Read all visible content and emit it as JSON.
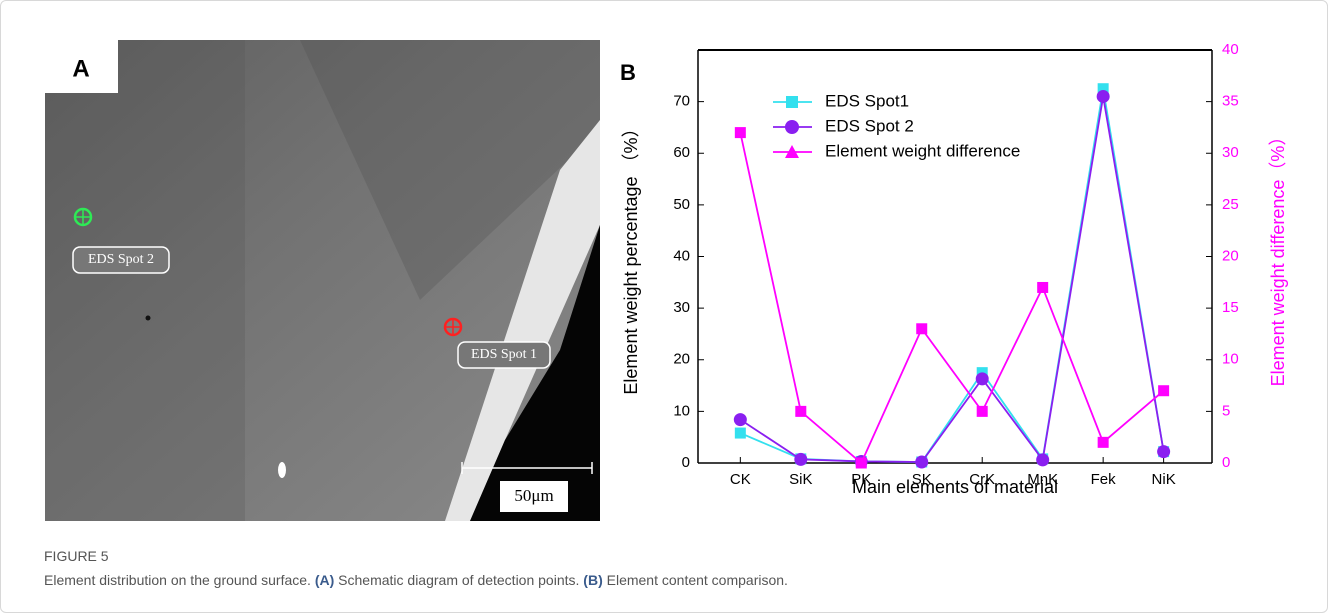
{
  "figure": {
    "label": "FIGURE 5",
    "caption": "Element distribution on the ground surface.",
    "parts": [
      {
        "tag": "(A)",
        "text": "Schematic diagram of detection points."
      },
      {
        "tag": "(B)",
        "text": "Element content comparison."
      }
    ]
  },
  "panel_a": {
    "label": "A",
    "spots": [
      "EDS Spot 2",
      "EDS Spot 1"
    ],
    "scale_bar": "50μm"
  },
  "chart_data": {
    "type": "line",
    "title": "B",
    "x_label": "Main elements of material",
    "y_label": "Element weight percentage （%）",
    "y2_label": "Element weight difference（%）",
    "categories": [
      "CK",
      "SiK",
      "PK",
      "SK",
      "CrK",
      "MnK",
      "Fek",
      "NiK"
    ],
    "series": [
      {
        "name": "EDS Spot1",
        "color": "#33e0ee",
        "marker": "square",
        "values": [
          5.8,
          0.8,
          0.3,
          0.2,
          17.5,
          0.8,
          72.5,
          2.2
        ]
      },
      {
        "name": "EDS Spot 2",
        "color": "#8a1ff0",
        "marker": "circle",
        "values": [
          8.4,
          0.7,
          0.3,
          0.2,
          16.3,
          0.6,
          71,
          2.2
        ]
      },
      {
        "name": "Element weight difference",
        "color": "#ff00ff",
        "marker": "square",
        "axis": "y2",
        "values": [
          32,
          5,
          0,
          13,
          5,
          17,
          2,
          7
        ]
      }
    ],
    "ylim": [
      0,
      80
    ],
    "yticks": [
      0,
      10,
      20,
      30,
      40,
      50,
      60,
      70
    ],
    "y2lim": [
      0,
      40
    ],
    "y2ticks": [
      0,
      5,
      10,
      15,
      20,
      25,
      30,
      35,
      40
    ],
    "grid": false
  }
}
